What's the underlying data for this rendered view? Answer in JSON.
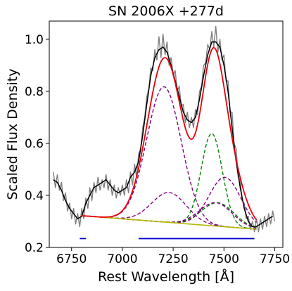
{
  "chart_data": {
    "type": "line",
    "title": "SN 2006X  +277d",
    "xlabel": "Rest Wavelength [Å]",
    "ylabel": "Scaled Flux Density",
    "xlim": [
      6640,
      7790
    ],
    "ylim": [
      0.2,
      1.07
    ],
    "xticks": [
      6750,
      7000,
      7250,
      7500,
      7750
    ],
    "yticks": [
      0.2,
      0.4,
      0.6,
      0.8,
      1.0
    ],
    "ytick_labels": [
      "0.2",
      "0.4",
      "0.6",
      "0.8",
      "1.0"
    ],
    "grid": false,
    "legend": "none",
    "continuum": {
      "x": [
        6800,
        7660
      ],
      "y": [
        0.322,
        0.27
      ]
    },
    "components": [
      {
        "color": "#800080",
        "amplitude": 0.52,
        "center": 7205,
        "sigma": 85
      },
      {
        "color": "#800080",
        "amplitude": 0.115,
        "center": 7230,
        "sigma": 85
      },
      {
        "color": "#008000",
        "amplitude": 0.355,
        "center": 7440,
        "sigma": 52
      },
      {
        "color": "#008000",
        "amplitude": 0.09,
        "center": 7470,
        "sigma": 80
      },
      {
        "color": "#800080",
        "amplitude": 0.19,
        "center": 7505,
        "sigma": 78
      },
      {
        "color": "#800080",
        "amplitude": 0.09,
        "center": 7460,
        "sigma": 80
      }
    ],
    "model": {
      "color": "#e8000b",
      "x_range": [
        6800,
        7660
      ]
    },
    "smoothed": {
      "color": "#000000",
      "x": [
        6660,
        6680,
        6700,
        6720,
        6740,
        6760,
        6780,
        6800,
        6820,
        6840,
        6860,
        6880,
        6900,
        6920,
        6940,
        6960,
        6980,
        7000,
        7020,
        7040,
        7060,
        7080,
        7100,
        7120,
        7140,
        7160,
        7180,
        7200,
        7220,
        7240,
        7260,
        7280,
        7300,
        7320,
        7340,
        7360,
        7380,
        7400,
        7420,
        7440,
        7460,
        7480,
        7500,
        7520,
        7540,
        7560,
        7580,
        7600,
        7620,
        7640,
        7660,
        7680,
        7700,
        7720,
        7740
      ],
      "y": [
        0.46,
        0.45,
        0.42,
        0.38,
        0.35,
        0.33,
        0.31,
        0.32,
        0.37,
        0.4,
        0.43,
        0.44,
        0.45,
        0.46,
        0.44,
        0.42,
        0.41,
        0.42,
        0.43,
        0.47,
        0.49,
        0.53,
        0.63,
        0.75,
        0.86,
        0.93,
        0.96,
        0.97,
        0.95,
        0.9,
        0.84,
        0.78,
        0.72,
        0.69,
        0.68,
        0.7,
        0.77,
        0.86,
        0.94,
        0.99,
        0.99,
        0.97,
        0.9,
        0.8,
        0.66,
        0.53,
        0.43,
        0.35,
        0.3,
        0.28,
        0.28,
        0.29,
        0.3,
        0.31,
        0.32
      ]
    },
    "raw": {
      "color": "#808080",
      "x": [
        6660,
        6670,
        6680,
        6690,
        6700,
        6710,
        6720,
        6730,
        6740,
        6750,
        6760,
        6770,
        6780,
        6790,
        6800,
        6810,
        6820,
        6830,
        6840,
        6850,
        6860,
        6870,
        6880,
        6890,
        6900,
        6910,
        6920,
        6930,
        6940,
        6950,
        6960,
        6970,
        6980,
        6990,
        7000,
        7010,
        7020,
        7030,
        7040,
        7050,
        7060,
        7070,
        7080,
        7090,
        7100,
        7110,
        7120,
        7130,
        7140,
        7150,
        7160,
        7170,
        7180,
        7190,
        7200,
        7210,
        7220,
        7230,
        7240,
        7250,
        7260,
        7270,
        7280,
        7290,
        7300,
        7310,
        7320,
        7330,
        7340,
        7350,
        7360,
        7370,
        7380,
        7390,
        7400,
        7410,
        7420,
        7430,
        7440,
        7450,
        7460,
        7470,
        7480,
        7490,
        7500,
        7510,
        7520,
        7530,
        7540,
        7550,
        7560,
        7570,
        7580,
        7590,
        7600,
        7610,
        7620,
        7630,
        7640,
        7650,
        7660,
        7670,
        7680,
        7690,
        7700,
        7710,
        7720,
        7730,
        7740,
        7750
      ],
      "y": [
        0.49,
        0.43,
        0.48,
        0.42,
        0.45,
        0.38,
        0.41,
        0.34,
        0.37,
        0.31,
        0.35,
        0.29,
        0.33,
        0.28,
        0.35,
        0.31,
        0.39,
        0.35,
        0.43,
        0.38,
        0.45,
        0.41,
        0.47,
        0.42,
        0.46,
        0.43,
        0.48,
        0.42,
        0.46,
        0.4,
        0.44,
        0.39,
        0.43,
        0.4,
        0.44,
        0.4,
        0.46,
        0.41,
        0.49,
        0.44,
        0.52,
        0.47,
        0.56,
        0.58,
        0.66,
        0.7,
        0.78,
        0.81,
        0.89,
        0.88,
        0.96,
        0.92,
        1.01,
        0.93,
        1.02,
        0.94,
        0.99,
        0.9,
        0.93,
        0.86,
        0.88,
        0.8,
        0.82,
        0.74,
        0.75,
        0.68,
        0.72,
        0.66,
        0.7,
        0.66,
        0.73,
        0.71,
        0.8,
        0.82,
        0.9,
        0.91,
        0.98,
        0.96,
        1.03,
        0.97,
        1.05,
        0.95,
        1.0,
        0.92,
        0.94,
        0.84,
        0.84,
        0.72,
        0.72,
        0.6,
        0.58,
        0.47,
        0.46,
        0.38,
        0.37,
        0.31,
        0.32,
        0.27,
        0.3,
        0.26,
        0.31,
        0.26,
        0.31,
        0.27,
        0.32,
        0.28,
        0.33,
        0.29,
        0.34,
        0.3
      ]
    },
    "fit_windows": [
      {
        "color": "#0000cc",
        "x": [
          6790,
          6820
        ],
        "y": 0.234
      },
      {
        "color": "#0000cc",
        "x": [
          7080,
          7650
        ],
        "y": 0.234
      }
    ]
  }
}
